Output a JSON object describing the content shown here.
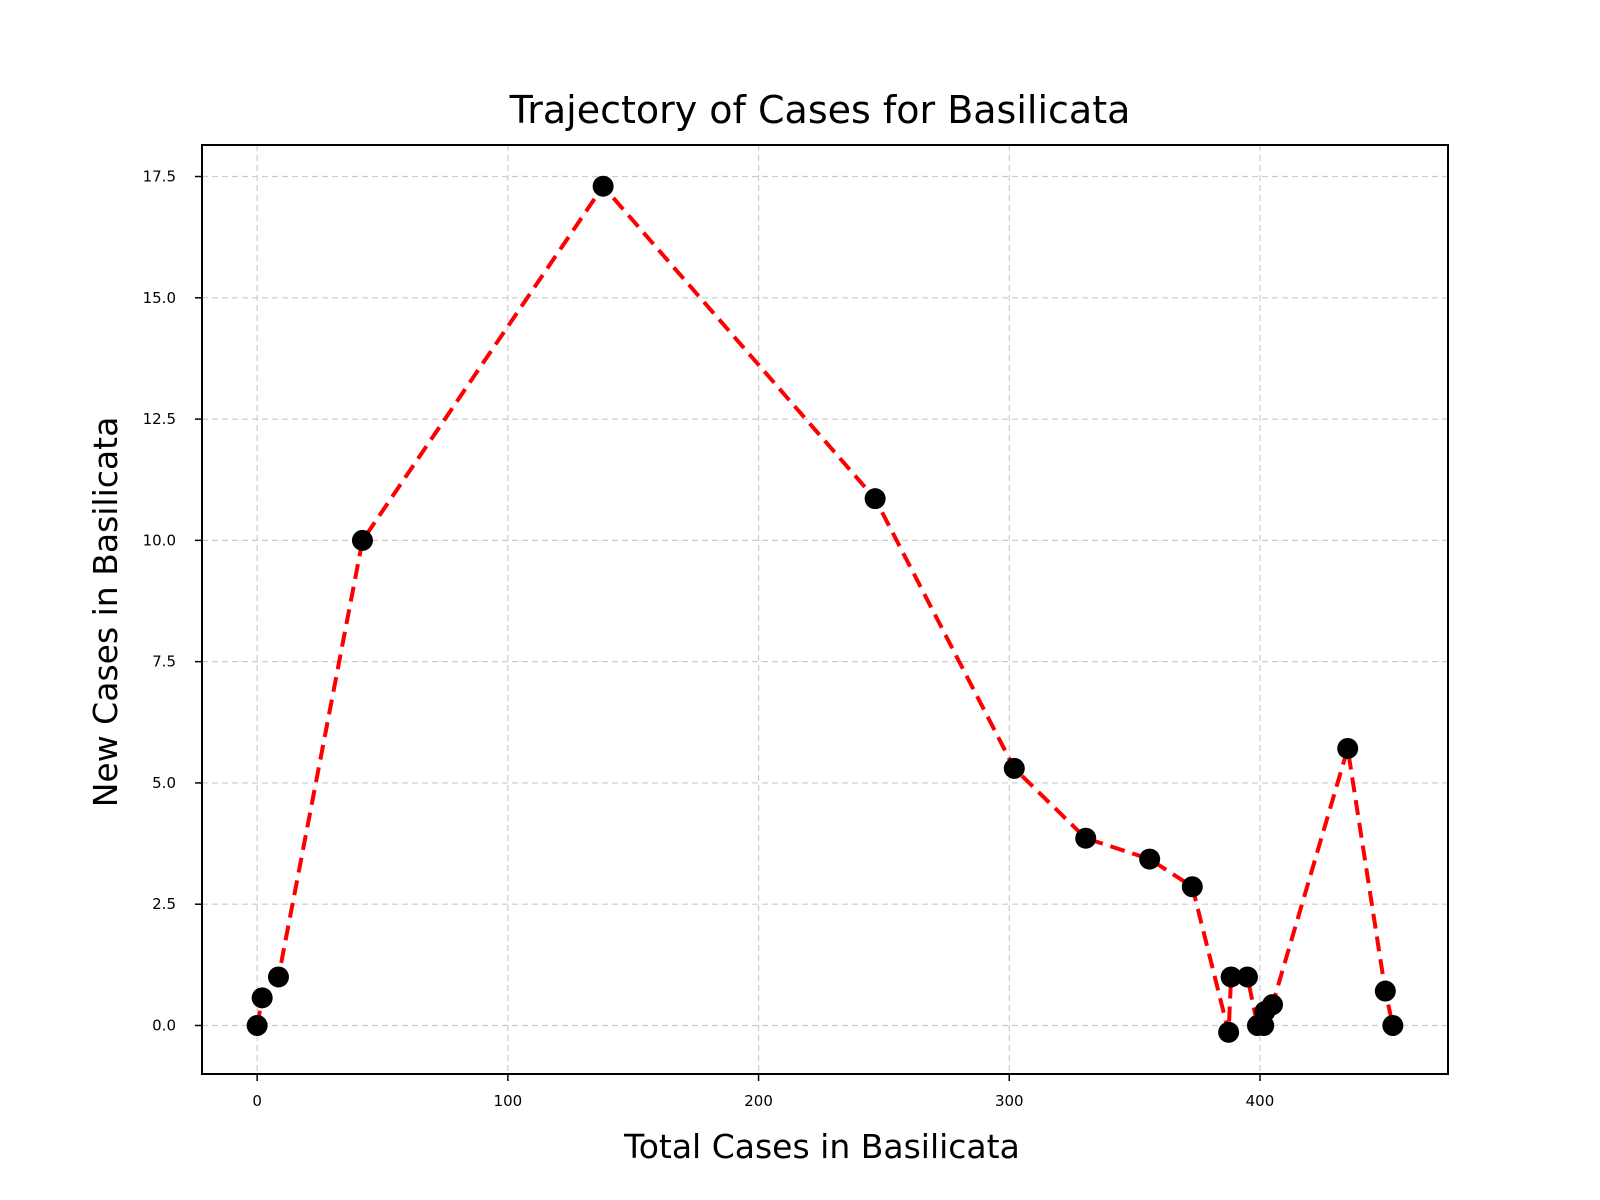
{
  "chart_data": {
    "type": "line",
    "title": "Trajectory of Cases for Basilicata",
    "xlabel": "Total Cases in Basilicata",
    "ylabel": "New Cases in Basilicata",
    "xlim": [
      -22,
      475
    ],
    "ylim": [
      -1.0,
      18.15
    ],
    "x_ticks": [
      0,
      100,
      200,
      300,
      400
    ],
    "x_tick_labels": [
      "0",
      "100",
      "200",
      "300",
      "400"
    ],
    "y_ticks": [
      0,
      2.5,
      5,
      7.5,
      10,
      12.5,
      15,
      17.5
    ],
    "y_tick_labels": [
      "0.0",
      "2.5",
      "5.0",
      "7.5",
      "10.0",
      "12.5",
      "15.0",
      "17.5"
    ],
    "grid": true,
    "legend": "none",
    "colors": {
      "line": "#ff0000",
      "marker": "#000000",
      "grid": "#cccccc"
    },
    "series": [
      {
        "x": [
          0,
          2,
          8.5,
          42,
          138,
          246.5,
          302,
          330.5,
          356,
          373,
          387.5,
          388.5,
          395,
          399,
          401.5,
          402,
          405,
          435,
          450,
          453
        ],
        "y": [
          0,
          0.57,
          1.0,
          10.0,
          17.3,
          10.86,
          5.3,
          3.86,
          3.43,
          2.86,
          -0.14,
          1.0,
          1.0,
          0.0,
          0.0,
          0.29,
          0.43,
          5.71,
          0.71,
          0.0
        ]
      }
    ]
  }
}
